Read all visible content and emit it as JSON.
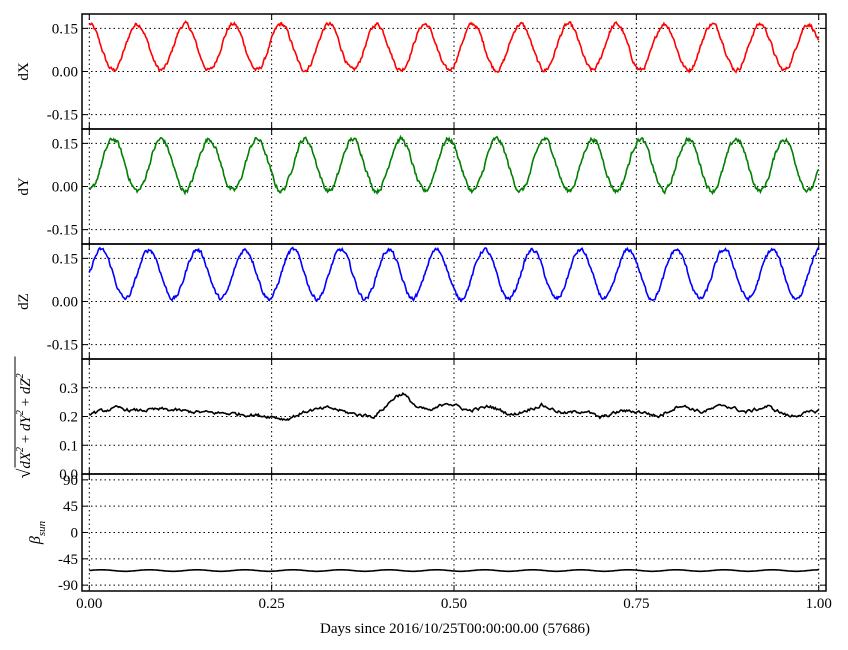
{
  "chart_data": [
    {
      "type": "line",
      "ylabel": "dX",
      "ylim": [
        -0.2,
        0.2
      ],
      "yticks": [
        "0.15",
        "0.00",
        "-0.15"
      ],
      "ytick_values": [
        0.15,
        0.0,
        -0.15
      ],
      "grid": true,
      "color": "#ff0000",
      "x_period": 0.0657,
      "x_phase": -0.0164,
      "series": [
        {
          "amplitude": 0.08,
          "offset": 0.085,
          "noise": 0.006
        }
      ]
    },
    {
      "type": "line",
      "ylabel": "dY",
      "ylim": [
        -0.2,
        0.2
      ],
      "yticks": [
        "0.15",
        "0.00",
        "-0.15"
      ],
      "ytick_values": [
        0.15,
        0.0,
        -0.15
      ],
      "grid": true,
      "color": "#008000",
      "x_period": 0.0657,
      "x_phase": 0.0164,
      "series": [
        {
          "amplitude": 0.09,
          "offset": 0.075,
          "noise": 0.007
        }
      ]
    },
    {
      "type": "line",
      "ylabel": "dZ",
      "ylim": [
        -0.2,
        0.2
      ],
      "yticks": [
        "0.15",
        "0.00",
        "-0.15"
      ],
      "ytick_values": [
        0.15,
        0.0,
        -0.15
      ],
      "grid": true,
      "color": "#0000ff",
      "x_period": 0.0657,
      "x_phase": 0.0,
      "series": [
        {
          "amplitude": 0.085,
          "offset": 0.095,
          "noise": 0.006
        }
      ]
    },
    {
      "type": "line",
      "ylabel_parts": [
        "√",
        "dX",
        "2",
        " + ",
        "dY",
        "2",
        " + ",
        "dZ",
        "2"
      ],
      "ylim": [
        0.0,
        0.4
      ],
      "yticks": [
        "0.3",
        "0.2",
        "0.1",
        "0.0"
      ],
      "ytick_values": [
        0.3,
        0.2,
        0.1,
        0.0
      ],
      "grid": true,
      "color": "#000000",
      "series": [
        {
          "x": [
            0.0,
            0.04,
            0.06,
            0.1,
            0.15,
            0.2,
            0.25,
            0.27,
            0.3,
            0.33,
            0.36,
            0.39,
            0.4,
            0.42,
            0.43,
            0.45,
            0.47,
            0.49,
            0.52,
            0.55,
            0.58,
            0.62,
            0.65,
            0.68,
            0.7,
            0.73,
            0.76,
            0.78,
            0.81,
            0.84,
            0.87,
            0.9,
            0.93,
            0.96,
            1.0
          ],
          "y": [
            0.21,
            0.23,
            0.22,
            0.225,
            0.215,
            0.21,
            0.2,
            0.19,
            0.22,
            0.23,
            0.21,
            0.2,
            0.22,
            0.27,
            0.28,
            0.23,
            0.22,
            0.25,
            0.22,
            0.235,
            0.205,
            0.24,
            0.21,
            0.22,
            0.195,
            0.22,
            0.215,
            0.2,
            0.24,
            0.215,
            0.24,
            0.215,
            0.235,
            0.2,
            0.22
          ],
          "noise": 0.005
        }
      ]
    },
    {
      "type": "line",
      "ylabel_parts": [
        "β",
        "sun"
      ],
      "ylim": [
        -100,
        100
      ],
      "yticks": [
        "90",
        "45",
        "0",
        "-45",
        "-90"
      ],
      "ytick_values": [
        90,
        45,
        0,
        -45,
        -90
      ],
      "grid": true,
      "color": "#000000",
      "x_period": 0.0657,
      "series": [
        {
          "amplitude": 1.3,
          "offset": -65
        }
      ]
    }
  ],
  "xaxis": {
    "label": "Days since 2016/10/25T00:00:00.00 (57686)",
    "xlim": [
      -0.01,
      1.01
    ],
    "ticks": [
      "0.00",
      "0.25",
      "0.50",
      "0.75",
      "1.00"
    ],
    "tick_values": [
      0.0,
      0.25,
      0.5,
      0.75,
      1.0
    ]
  }
}
